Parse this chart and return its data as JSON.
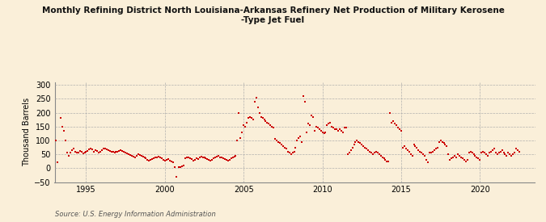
{
  "title": "Monthly Refining District North Louisiana-Arkansas Refinery Net Production of Military Kerosene\n-Type Jet Fuel",
  "ylabel": "Thousand Barrels",
  "source": "Source: U.S. Energy Information Administration",
  "background_color": "#faefd9",
  "plot_bg_color": "#faefd9",
  "dot_color": "#cc0000",
  "dot_size": 3,
  "xlim": [
    1993.0,
    2023.5
  ],
  "ylim": [
    -50,
    310
  ],
  "yticks": [
    -50,
    0,
    50,
    100,
    150,
    200,
    250,
    300
  ],
  "xticks": [
    1995,
    2000,
    2005,
    2010,
    2015,
    2020
  ],
  "data": [
    [
      1993.1,
      100
    ],
    [
      1993.2,
      20
    ],
    [
      1993.4,
      180
    ],
    [
      1993.5,
      150
    ],
    [
      1993.6,
      135
    ],
    [
      1993.7,
      100
    ],
    [
      1993.8,
      55
    ],
    [
      1993.9,
      45
    ],
    [
      1994.0,
      55
    ],
    [
      1994.1,
      65
    ],
    [
      1994.2,
      70
    ],
    [
      1994.3,
      60
    ],
    [
      1994.4,
      55
    ],
    [
      1994.5,
      55
    ],
    [
      1994.6,
      62
    ],
    [
      1994.7,
      60
    ],
    [
      1994.8,
      52
    ],
    [
      1994.9,
      55
    ],
    [
      1995.0,
      58
    ],
    [
      1995.1,
      63
    ],
    [
      1995.2,
      68
    ],
    [
      1995.3,
      72
    ],
    [
      1995.4,
      68
    ],
    [
      1995.5,
      58
    ],
    [
      1995.6,
      65
    ],
    [
      1995.7,
      62
    ],
    [
      1995.8,
      55
    ],
    [
      1995.9,
      60
    ],
    [
      1996.0,
      65
    ],
    [
      1996.1,
      70
    ],
    [
      1996.2,
      72
    ],
    [
      1996.3,
      68
    ],
    [
      1996.4,
      65
    ],
    [
      1996.5,
      62
    ],
    [
      1996.6,
      58
    ],
    [
      1996.7,
      60
    ],
    [
      1996.8,
      55
    ],
    [
      1996.9,
      58
    ],
    [
      1997.0,
      60
    ],
    [
      1997.1,
      62
    ],
    [
      1997.2,
      65
    ],
    [
      1997.3,
      62
    ],
    [
      1997.4,
      58
    ],
    [
      1997.5,
      55
    ],
    [
      1997.6,
      52
    ],
    [
      1997.7,
      50
    ],
    [
      1997.8,
      48
    ],
    [
      1997.9,
      45
    ],
    [
      1998.0,
      42
    ],
    [
      1998.1,
      40
    ],
    [
      1998.2,
      45
    ],
    [
      1998.3,
      50
    ],
    [
      1998.4,
      48
    ],
    [
      1998.5,
      45
    ],
    [
      1998.6,
      42
    ],
    [
      1998.7,
      38
    ],
    [
      1998.8,
      35
    ],
    [
      1998.9,
      30
    ],
    [
      1999.0,
      28
    ],
    [
      1999.1,
      30
    ],
    [
      1999.2,
      32
    ],
    [
      1999.3,
      35
    ],
    [
      1999.4,
      38
    ],
    [
      1999.5,
      40
    ],
    [
      1999.6,
      42
    ],
    [
      1999.7,
      38
    ],
    [
      1999.8,
      35
    ],
    [
      1999.9,
      30
    ],
    [
      2000.0,
      28
    ],
    [
      2000.1,
      30
    ],
    [
      2000.2,
      32
    ],
    [
      2000.3,
      28
    ],
    [
      2000.4,
      25
    ],
    [
      2000.5,
      22
    ],
    [
      2000.6,
      5
    ],
    [
      2000.75,
      -30
    ],
    [
      2000.9,
      3
    ],
    [
      2001.0,
      5
    ],
    [
      2001.1,
      8
    ],
    [
      2001.2,
      10
    ],
    [
      2001.3,
      35
    ],
    [
      2001.4,
      38
    ],
    [
      2001.5,
      40
    ],
    [
      2001.6,
      35
    ],
    [
      2001.7,
      32
    ],
    [
      2001.8,
      28
    ],
    [
      2001.9,
      30
    ],
    [
      2002.0,
      35
    ],
    [
      2002.1,
      32
    ],
    [
      2002.2,
      38
    ],
    [
      2002.3,
      42
    ],
    [
      2002.4,
      40
    ],
    [
      2002.5,
      38
    ],
    [
      2002.6,
      35
    ],
    [
      2002.7,
      32
    ],
    [
      2002.8,
      30
    ],
    [
      2002.9,
      28
    ],
    [
      2003.0,
      30
    ],
    [
      2003.1,
      35
    ],
    [
      2003.2,
      40
    ],
    [
      2003.3,
      42
    ],
    [
      2003.4,
      45
    ],
    [
      2003.5,
      40
    ],
    [
      2003.6,
      38
    ],
    [
      2003.7,
      35
    ],
    [
      2003.8,
      32
    ],
    [
      2003.9,
      30
    ],
    [
      2004.0,
      28
    ],
    [
      2004.1,
      30
    ],
    [
      2004.2,
      35
    ],
    [
      2004.3,
      40
    ],
    [
      2004.4,
      42
    ],
    [
      2004.5,
      45
    ],
    [
      2004.6,
      100
    ],
    [
      2004.7,
      200
    ],
    [
      2004.8,
      110
    ],
    [
      2004.9,
      130
    ],
    [
      2005.0,
      155
    ],
    [
      2005.1,
      150
    ],
    [
      2005.2,
      165
    ],
    [
      2005.3,
      180
    ],
    [
      2005.4,
      185
    ],
    [
      2005.5,
      180
    ],
    [
      2005.6,
      175
    ],
    [
      2005.7,
      240
    ],
    [
      2005.8,
      255
    ],
    [
      2005.9,
      220
    ],
    [
      2006.0,
      200
    ],
    [
      2006.1,
      185
    ],
    [
      2006.2,
      180
    ],
    [
      2006.3,
      175
    ],
    [
      2006.4,
      170
    ],
    [
      2006.5,
      165
    ],
    [
      2006.6,
      160
    ],
    [
      2006.7,
      155
    ],
    [
      2006.8,
      150
    ],
    [
      2006.9,
      145
    ],
    [
      2007.0,
      105
    ],
    [
      2007.1,
      100
    ],
    [
      2007.2,
      95
    ],
    [
      2007.3,
      90
    ],
    [
      2007.4,
      85
    ],
    [
      2007.5,
      80
    ],
    [
      2007.6,
      75
    ],
    [
      2007.7,
      70
    ],
    [
      2007.8,
      60
    ],
    [
      2007.9,
      55
    ],
    [
      2008.0,
      50
    ],
    [
      2008.1,
      55
    ],
    [
      2008.2,
      60
    ],
    [
      2008.3,
      75
    ],
    [
      2008.4,
      100
    ],
    [
      2008.5,
      110
    ],
    [
      2008.6,
      115
    ],
    [
      2008.7,
      95
    ],
    [
      2008.8,
      260
    ],
    [
      2008.9,
      240
    ],
    [
      2009.0,
      130
    ],
    [
      2009.1,
      160
    ],
    [
      2009.2,
      155
    ],
    [
      2009.3,
      190
    ],
    [
      2009.4,
      185
    ],
    [
      2009.5,
      135
    ],
    [
      2009.6,
      150
    ],
    [
      2009.7,
      145
    ],
    [
      2009.8,
      140
    ],
    [
      2009.9,
      135
    ],
    [
      2010.0,
      130
    ],
    [
      2010.1,
      125
    ],
    [
      2010.2,
      130
    ],
    [
      2010.3,
      155
    ],
    [
      2010.4,
      160
    ],
    [
      2010.5,
      165
    ],
    [
      2010.6,
      150
    ],
    [
      2010.7,
      145
    ],
    [
      2010.8,
      140
    ],
    [
      2010.9,
      140
    ],
    [
      2011.0,
      135
    ],
    [
      2011.1,
      140
    ],
    [
      2011.2,
      135
    ],
    [
      2011.3,
      130
    ],
    [
      2011.4,
      145
    ],
    [
      2011.5,
      145
    ],
    [
      2011.6,
      50
    ],
    [
      2011.7,
      55
    ],
    [
      2011.8,
      65
    ],
    [
      2011.9,
      75
    ],
    [
      2012.0,
      85
    ],
    [
      2012.1,
      95
    ],
    [
      2012.2,
      100
    ],
    [
      2012.3,
      95
    ],
    [
      2012.4,
      90
    ],
    [
      2012.5,
      85
    ],
    [
      2012.6,
      80
    ],
    [
      2012.7,
      75
    ],
    [
      2012.8,
      70
    ],
    [
      2012.9,
      65
    ],
    [
      2013.0,
      60
    ],
    [
      2013.1,
      55
    ],
    [
      2013.2,
      50
    ],
    [
      2013.3,
      55
    ],
    [
      2013.4,
      60
    ],
    [
      2013.5,
      55
    ],
    [
      2013.6,
      50
    ],
    [
      2013.7,
      45
    ],
    [
      2013.8,
      40
    ],
    [
      2013.9,
      35
    ],
    [
      2014.0,
      30
    ],
    [
      2014.1,
      25
    ],
    [
      2014.2,
      25
    ],
    [
      2014.3,
      200
    ],
    [
      2014.4,
      165
    ],
    [
      2014.5,
      170
    ],
    [
      2014.6,
      160
    ],
    [
      2014.7,
      155
    ],
    [
      2014.8,
      145
    ],
    [
      2014.9,
      140
    ],
    [
      2015.0,
      135
    ],
    [
      2015.1,
      75
    ],
    [
      2015.2,
      80
    ],
    [
      2015.3,
      70
    ],
    [
      2015.4,
      65
    ],
    [
      2015.5,
      60
    ],
    [
      2015.6,
      50
    ],
    [
      2015.7,
      45
    ],
    [
      2015.8,
      85
    ],
    [
      2015.9,
      80
    ],
    [
      2016.0,
      75
    ],
    [
      2016.1,
      65
    ],
    [
      2016.2,
      60
    ],
    [
      2016.3,
      55
    ],
    [
      2016.4,
      50
    ],
    [
      2016.5,
      45
    ],
    [
      2016.6,
      30
    ],
    [
      2016.7,
      20
    ],
    [
      2016.8,
      55
    ],
    [
      2016.9,
      55
    ],
    [
      2017.0,
      60
    ],
    [
      2017.1,
      65
    ],
    [
      2017.2,
      70
    ],
    [
      2017.3,
      75
    ],
    [
      2017.4,
      95
    ],
    [
      2017.5,
      100
    ],
    [
      2017.6,
      95
    ],
    [
      2017.7,
      90
    ],
    [
      2017.8,
      85
    ],
    [
      2017.9,
      80
    ],
    [
      2018.0,
      50
    ],
    [
      2018.1,
      30
    ],
    [
      2018.2,
      35
    ],
    [
      2018.3,
      40
    ],
    [
      2018.4,
      45
    ],
    [
      2018.5,
      40
    ],
    [
      2018.6,
      50
    ],
    [
      2018.7,
      45
    ],
    [
      2018.8,
      40
    ],
    [
      2018.9,
      35
    ],
    [
      2019.0,
      30
    ],
    [
      2019.1,
      25
    ],
    [
      2019.2,
      30
    ],
    [
      2019.3,
      55
    ],
    [
      2019.4,
      60
    ],
    [
      2019.5,
      55
    ],
    [
      2019.6,
      50
    ],
    [
      2019.7,
      45
    ],
    [
      2019.8,
      40
    ],
    [
      2019.9,
      35
    ],
    [
      2020.0,
      30
    ],
    [
      2020.1,
      55
    ],
    [
      2020.2,
      60
    ],
    [
      2020.3,
      55
    ],
    [
      2020.4,
      50
    ],
    [
      2020.5,
      45
    ],
    [
      2020.6,
      55
    ],
    [
      2020.7,
      60
    ],
    [
      2020.8,
      65
    ],
    [
      2020.9,
      70
    ],
    [
      2021.0,
      55
    ],
    [
      2021.1,
      50
    ],
    [
      2021.2,
      55
    ],
    [
      2021.3,
      60
    ],
    [
      2021.4,
      65
    ],
    [
      2021.5,
      55
    ],
    [
      2021.6,
      50
    ],
    [
      2021.7,
      45
    ],
    [
      2021.8,
      55
    ],
    [
      2021.9,
      50
    ],
    [
      2022.0,
      45
    ],
    [
      2022.1,
      50
    ],
    [
      2022.2,
      55
    ],
    [
      2022.3,
      70
    ],
    [
      2022.4,
      65
    ],
    [
      2022.5,
      60
    ]
  ]
}
